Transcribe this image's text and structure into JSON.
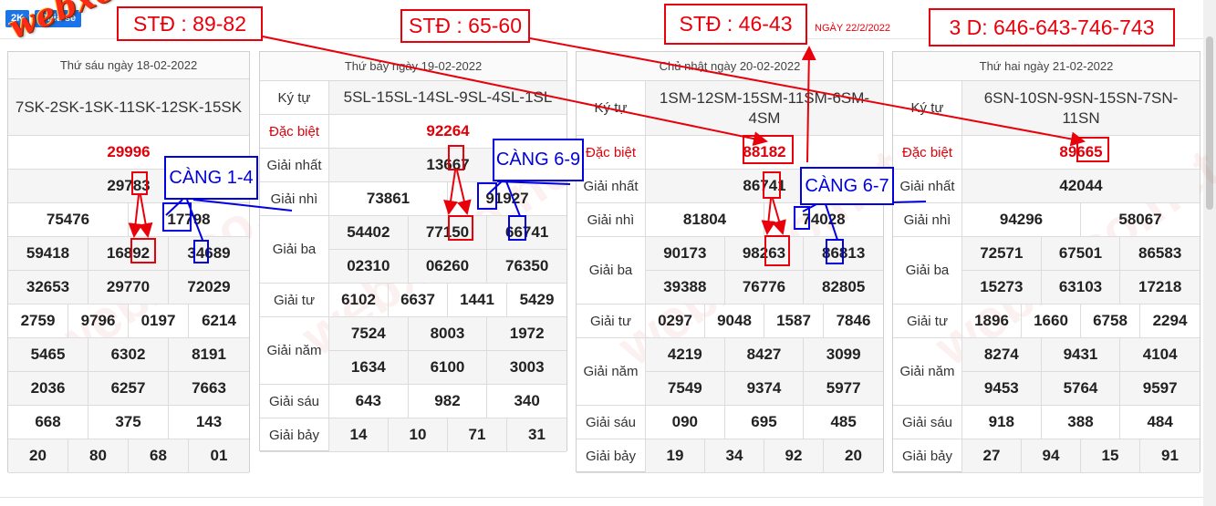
{
  "toolbar": {
    "badge_2k": "2K",
    "share": "Chia sẻ"
  },
  "logo_text": "webxoso.net",
  "watermark": "webxoso.net",
  "colors": {
    "accent_red": "#e8000b",
    "accent_blue": "#0000e0",
    "button_blue": "#1a73e8"
  },
  "annotations": {
    "std1": "STĐ : 89-82",
    "std2": "STĐ : 65-60",
    "std3": "STĐ : 46-43",
    "date": "NGÀY 22/2/2022",
    "three_d": "3 D: 646-643-746-743",
    "cang1": "CÀNG 1-4",
    "cang2": "CÀNG 6-9",
    "cang3": "CÀNG 6-7"
  },
  "tables": [
    {
      "header": "Thứ sáu ngày 18-02-2022",
      "code": "7SK-2SK-1SK-11SK-12SK-15SK",
      "special": "29996",
      "first": "29783",
      "second": [
        "75476",
        "17798"
      ],
      "third": [
        "59418",
        "16892",
        "34689",
        "32653",
        "29770",
        "72029"
      ],
      "fourth": [
        "2759",
        "9796",
        "0197",
        "6214"
      ],
      "fifth": [
        "5465",
        "6302",
        "8191",
        "2036",
        "6257",
        "7663"
      ],
      "sixth": [
        "668",
        "375",
        "143"
      ],
      "seventh": [
        "20",
        "80",
        "68",
        "01"
      ]
    },
    {
      "header": "Thứ bảy ngày 19-02-2022",
      "code": "5SL-15SL-14SL-9SL-4SL-1SL",
      "labels": {
        "code": "Ký tự",
        "special": "Đặc biệt",
        "first": "Giải nhất",
        "second": "Giải nhì",
        "third": "Giải ba",
        "fourth": "Giải tư",
        "fifth": "Giải năm",
        "sixth": "Giải sáu",
        "seventh": "Giải bảy"
      },
      "special": "92264",
      "first": "13667",
      "second": [
        "73861",
        "91927"
      ],
      "third": [
        "54402",
        "77150",
        "66741",
        "02310",
        "06260",
        "76350"
      ],
      "fourth": [
        "6102",
        "6637",
        "1441",
        "5429"
      ],
      "fifth": [
        "7524",
        "8003",
        "1972",
        "1634",
        "6100",
        "3003"
      ],
      "sixth": [
        "643",
        "982",
        "340"
      ],
      "seventh": [
        "14",
        "10",
        "71",
        "31"
      ]
    },
    {
      "header": "Chủ nhật ngày 20-02-2022",
      "code": "1SM-12SM-15SM-11SM-6SM-4SM",
      "labels": {
        "code": "Ký tự",
        "special": "Đặc biệt",
        "first": "Giải nhất",
        "second": "Giải nhì",
        "third": "Giải ba",
        "fourth": "Giải tư",
        "fifth": "Giải năm",
        "sixth": "Giải sáu",
        "seventh": "Giải bảy"
      },
      "special": "88182",
      "first": "86741",
      "second": [
        "81804",
        "74028"
      ],
      "third": [
        "90173",
        "98263",
        "86813",
        "39388",
        "76776",
        "82805"
      ],
      "fourth": [
        "0297",
        "9048",
        "1587",
        "7846"
      ],
      "fifth": [
        "4219",
        "8427",
        "3099",
        "7549",
        "9374",
        "5977"
      ],
      "sixth": [
        "090",
        "695",
        "485"
      ],
      "seventh": [
        "19",
        "34",
        "92",
        "20"
      ]
    },
    {
      "header": "Thứ hai ngày 21-02-2022",
      "code": "6SN-10SN-9SN-15SN-7SN-11SN",
      "labels": {
        "code": "Ký tự",
        "special": "Đặc biệt",
        "first": "Giải nhất",
        "second": "Giải nhì",
        "third": "Giải ba",
        "fourth": "Giải tư",
        "fifth": "Giải năm",
        "sixth": "Giải sáu",
        "seventh": "Giải bảy"
      },
      "special": "89665",
      "first": "42044",
      "second": [
        "94296",
        "58067"
      ],
      "third": [
        "72571",
        "67501",
        "86583",
        "15273",
        "63103",
        "17218"
      ],
      "fourth": [
        "1896",
        "1660",
        "6758",
        "2294"
      ],
      "fifth": [
        "8274",
        "9431",
        "4104",
        "9453",
        "5764",
        "9597"
      ],
      "sixth": [
        "918",
        "388",
        "484"
      ],
      "seventh": [
        "27",
        "94",
        "15",
        "91"
      ]
    }
  ]
}
